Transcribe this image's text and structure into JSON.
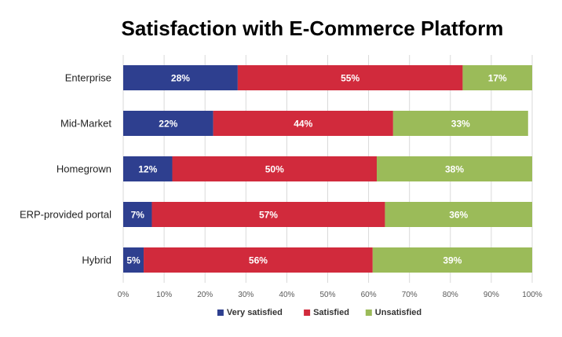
{
  "chart_data": {
    "type": "bar",
    "orientation": "horizontal",
    "stacked": true,
    "title": "Satisfaction with E-Commerce Platform",
    "categories": [
      "Enterprise",
      "Mid-Market",
      "Homegrown",
      "ERP-provided portal",
      "Hybrid"
    ],
    "series": [
      {
        "name": "Very satisfied",
        "color": "#2E3F8F",
        "values": [
          28,
          22,
          12,
          7,
          5
        ],
        "labels": [
          "28%",
          "22%",
          "12%",
          "7%",
          "5%"
        ]
      },
      {
        "name": "Satisfied",
        "color": "#D12A3C",
        "values": [
          55,
          44,
          50,
          57,
          56
        ],
        "labels": [
          "55%",
          "44%",
          "50%",
          "57%",
          "56%"
        ]
      },
      {
        "name": "Unsatisfied",
        "color": "#9BBB59",
        "values": [
          17,
          33,
          38,
          36,
          39
        ],
        "labels": [
          "17%",
          "33%",
          "38%",
          "36%",
          "39%"
        ]
      }
    ],
    "xlim": [
      0,
      100
    ],
    "xticks": [
      "0%",
      "10%",
      "20%",
      "30%",
      "40%",
      "50%",
      "60%",
      "70%",
      "80%",
      "90%",
      "100%"
    ],
    "grid": true,
    "legend": "bottom"
  }
}
